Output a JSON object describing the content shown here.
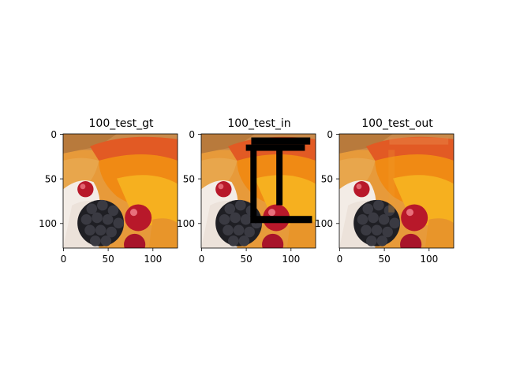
{
  "figure": {
    "panels": [
      {
        "title": "100_test_gt",
        "x_ticks": [
          "0",
          "50",
          "100"
        ],
        "y_ticks": [
          "0",
          "50",
          "100"
        ],
        "variant": "ground-truth"
      },
      {
        "title": "100_test_in",
        "x_ticks": [
          "0",
          "50",
          "100"
        ],
        "y_ticks": [
          "0",
          "50",
          "100"
        ],
        "variant": "masked-input"
      },
      {
        "title": "100_test_out",
        "x_ticks": [
          "0",
          "50",
          "100"
        ],
        "y_ticks": [
          "0",
          "50",
          "100"
        ],
        "variant": "inpainted-output"
      }
    ],
    "image_extent": [
      0,
      128
    ],
    "colors": {
      "background": "#ffffff",
      "axis": "#000000",
      "mask": "#000000",
      "fruit_orange": "#f08a14",
      "fruit_yellow": "#f6b01f",
      "berry": "#2b2b30",
      "cherry": "#b8182a",
      "cream": "#f3ece6",
      "crust": "#c98a4a"
    }
  }
}
